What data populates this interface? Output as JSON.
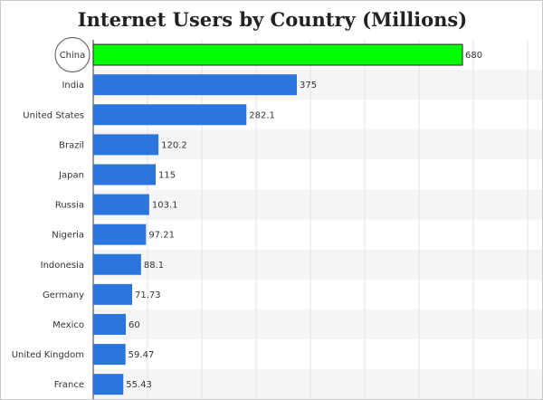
{
  "chart_data": {
    "type": "bar",
    "orientation": "horizontal",
    "title": "Internet Users by Country (Millions)",
    "xlabel": "",
    "ylabel": "",
    "categories": [
      "China",
      "India",
      "United States",
      "Brazil",
      "Japan",
      "Russia",
      "Nigeria",
      "Indonesia",
      "Germany",
      "Mexico",
      "United Kingdom",
      "France"
    ],
    "values": [
      680,
      375,
      282.1,
      120.2,
      115,
      103.1,
      97.21,
      88.1,
      71.73,
      60,
      59.47,
      55.43
    ],
    "value_labels": [
      "680",
      "375",
      "282.1",
      "120.2",
      "115",
      "103.1",
      "97.21",
      "88.1",
      "71.73",
      "60",
      "59.47",
      "55.43"
    ],
    "xlim": [
      0,
      830
    ],
    "grid": true,
    "highlight": {
      "category": "China",
      "color": "#00ff00",
      "circled_label": true
    },
    "colors": {
      "bar": "#2a76dd",
      "highlight": "#00ff00",
      "band": "#f5f5f5",
      "grid": "#e3e3e3",
      "axis": "#333333"
    }
  }
}
